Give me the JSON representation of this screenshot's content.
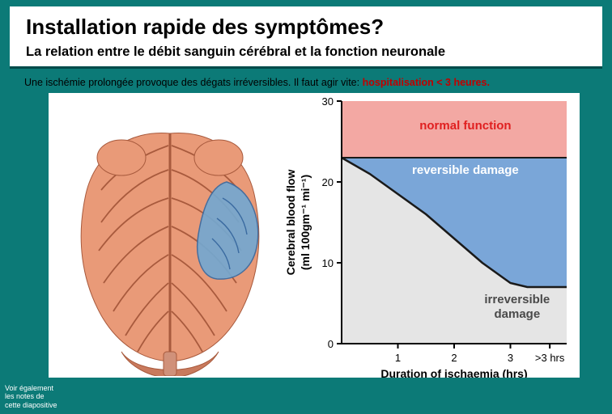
{
  "header": {
    "title": "Installation rapide des symptômes?",
    "subtitle": "La  relation entre le débit sanguin cérébral et la fonction neuronale"
  },
  "lead": {
    "text_before": "Une ischémie prolongée provoque des dégats irréversibles. Il faut agir vite: ",
    "emph": "hospitalisation < 3 heures."
  },
  "brain": {
    "cortex_color": "#e99a78",
    "sulcus_color": "#a85a3d",
    "ischemic_color": "#74a8d0",
    "cerebellum_color": "#c97a5d",
    "brainstem_color": "#d0917a",
    "bg": "#ffffff"
  },
  "chart": {
    "title_y": "Cerebral blood flow",
    "unit_y": "(ml 100gm⁻¹ mi⁻¹)",
    "title_x": "Duration of ischaemia (hrs)",
    "ylim": [
      0,
      30
    ],
    "yticks": [
      0,
      10,
      20,
      30
    ],
    "xticks": [
      "1",
      "2",
      "3",
      ">3 hrs"
    ],
    "zones": {
      "normal": {
        "label": "normal function",
        "color": "#f3a8a3",
        "text_color": "#e02020"
      },
      "reversible": {
        "label": "reversible damage",
        "color": "#7aa6d8",
        "text_color": "#ffffff"
      },
      "irreversible": {
        "label": "irreversible\ndamage",
        "color": "#e5e5e5",
        "text_color": "#4a4a4a"
      }
    },
    "normal_threshold": 23,
    "curve_points": [
      [
        0.0,
        23
      ],
      [
        0.5,
        21
      ],
      [
        1.0,
        18.5
      ],
      [
        1.5,
        16
      ],
      [
        2.0,
        13
      ],
      [
        2.5,
        10
      ],
      [
        3.0,
        7.5
      ],
      [
        3.3,
        7
      ],
      [
        3.6,
        7
      ],
      [
        4.0,
        7
      ]
    ],
    "axis_color": "#000000",
    "plot_bg": "#ffffff"
  },
  "footer": {
    "line1": "Voir également",
    "line2": "les notes de",
    "line3": "cette diapositive"
  }
}
